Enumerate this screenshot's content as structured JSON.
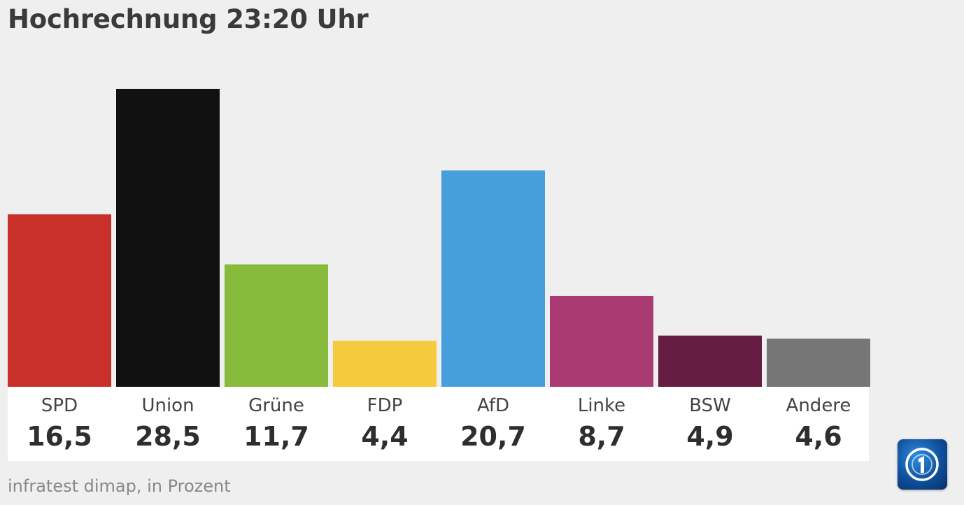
{
  "header": {
    "title": "Hochrechnung 23:20 Uhr"
  },
  "chart_data": {
    "type": "bar",
    "title": "Hochrechnung 23:20 Uhr",
    "categories": [
      "SPD",
      "Union",
      "Grüne",
      "FDP",
      "AfD",
      "Linke",
      "BSW",
      "Andere"
    ],
    "values": [
      16.5,
      28.5,
      11.7,
      4.4,
      20.7,
      8.7,
      4.9,
      4.6
    ],
    "value_labels": [
      "16,5",
      "28,5",
      "11,7",
      "4,4",
      "20,7",
      "8,7",
      "4,9",
      "4,6"
    ],
    "colors": [
      "#c8312a",
      "#111111",
      "#86bb3c",
      "#f5cb3d",
      "#469edb",
      "#a93a72",
      "#641c40",
      "#767676"
    ],
    "ylabel": "Prozent",
    "xlabel": "",
    "ylim": [
      0,
      28.5
    ],
    "grid": false,
    "legend": "none"
  },
  "footer": {
    "source": "infratest dimap, in Prozent"
  },
  "logo": {
    "icon": "tagesschau-logo-icon"
  }
}
